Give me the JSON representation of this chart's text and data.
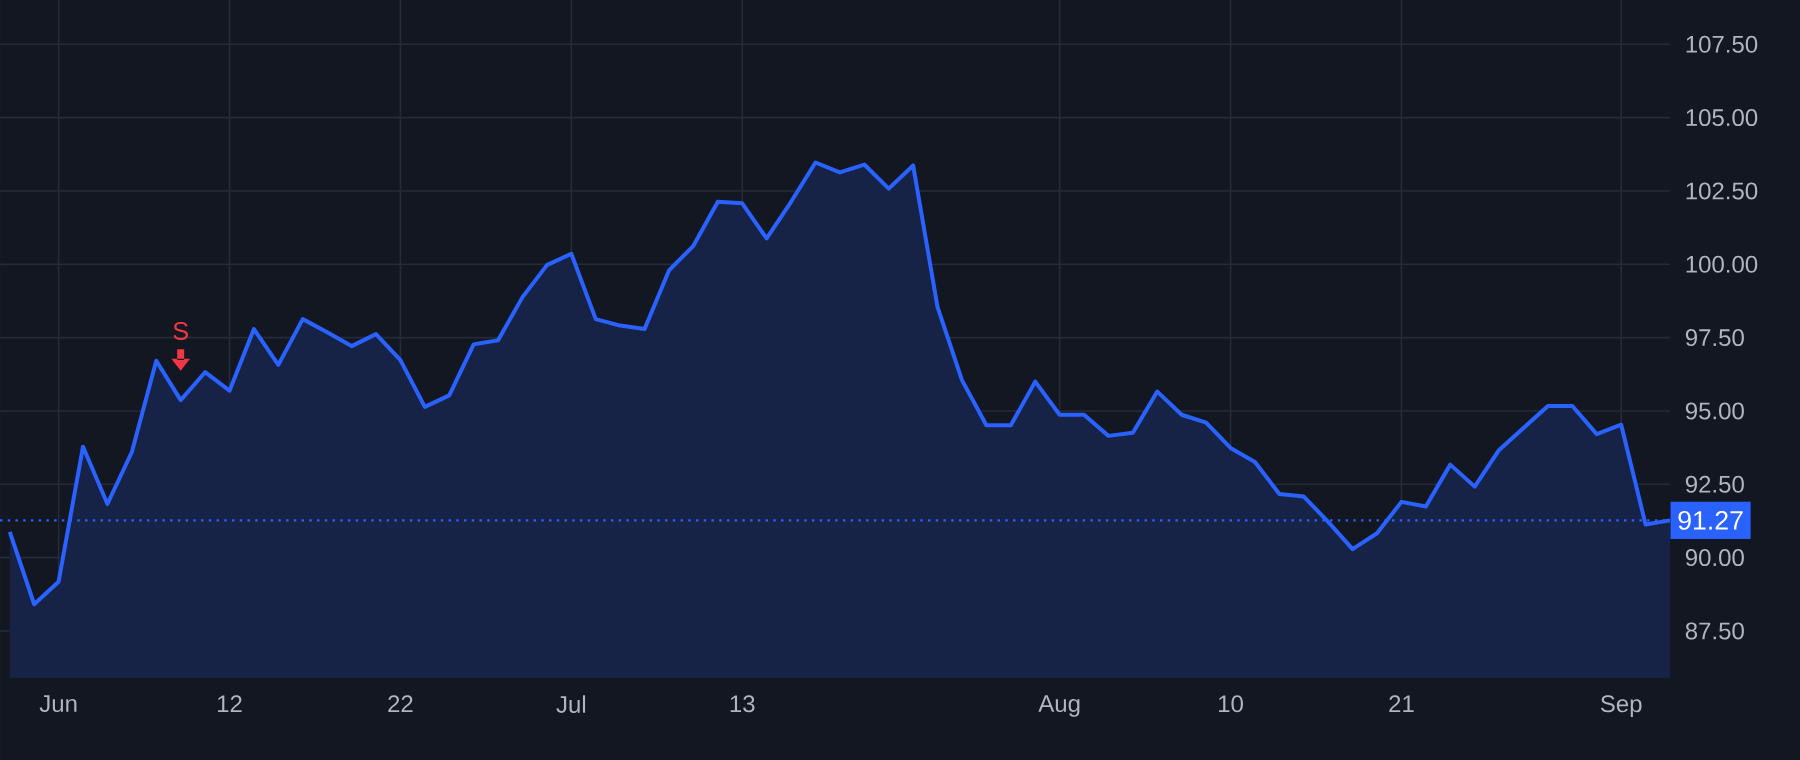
{
  "chart_data": {
    "type": "area",
    "color": "#2962ff",
    "grid": true,
    "categories": [
      null,
      null,
      "Jun",
      null,
      null,
      null,
      null,
      null,
      null,
      "12",
      null,
      null,
      null,
      null,
      null,
      null,
      "22",
      null,
      null,
      null,
      null,
      null,
      null,
      "Jul",
      null,
      null,
      null,
      null,
      null,
      null,
      "13",
      null,
      null,
      null,
      null,
      null,
      null,
      null,
      null,
      null,
      null,
      null,
      null,
      "Aug",
      null,
      null,
      null,
      null,
      null,
      null,
      "10",
      null,
      null,
      null,
      null,
      null,
      null,
      "21",
      null,
      null,
      null,
      null,
      null,
      null,
      null,
      null,
      "Sep",
      null,
      null
    ],
    "values": [
      90.88,
      88.41,
      89.18,
      93.78,
      91.83,
      93.6,
      96.71,
      95.37,
      96.32,
      95.69,
      97.79,
      96.57,
      98.13,
      97.68,
      97.21,
      97.62,
      96.73,
      95.14,
      95.53,
      97.27,
      97.41,
      98.88,
      99.97,
      100.36,
      98.13,
      97.91,
      97.79,
      99.79,
      100.63,
      102.13,
      102.08,
      100.88,
      102.13,
      103.47,
      103.13,
      103.4,
      102.58,
      103.37,
      98.54,
      96.05,
      94.51,
      94.51,
      96.0,
      94.87,
      94.87,
      94.15,
      94.26,
      95.66,
      94.87,
      94.6,
      93.74,
      93.26,
      92.17,
      92.08,
      91.22,
      90.29,
      90.83,
      91.9,
      91.74,
      93.17,
      92.42,
      93.67,
      94.42,
      95.17,
      95.17,
      94.21,
      94.53,
      91.13,
      91.27
    ],
    "ylim": [
      85.9,
      109.9
    ],
    "yticks": [
      {
        "value": 87.5,
        "label": "87.50"
      },
      {
        "value": 90,
        "label": "90.00"
      },
      {
        "value": 92.5,
        "label": "92.50"
      },
      {
        "value": 95,
        "label": "95.00"
      },
      {
        "value": 97.5,
        "label": "97.50"
      },
      {
        "value": 100,
        "label": "100.00"
      },
      {
        "value": 102.5,
        "label": "102.50"
      },
      {
        "value": 105,
        "label": "105.00"
      },
      {
        "value": 107.5,
        "label": "107.50"
      }
    ],
    "ref_lines": [
      {
        "axis": "y",
        "value": 91.27,
        "label": "91.27",
        "color": "#2962ff",
        "line_style": "dotted"
      }
    ],
    "annotations": [
      "S"
    ]
  }
}
